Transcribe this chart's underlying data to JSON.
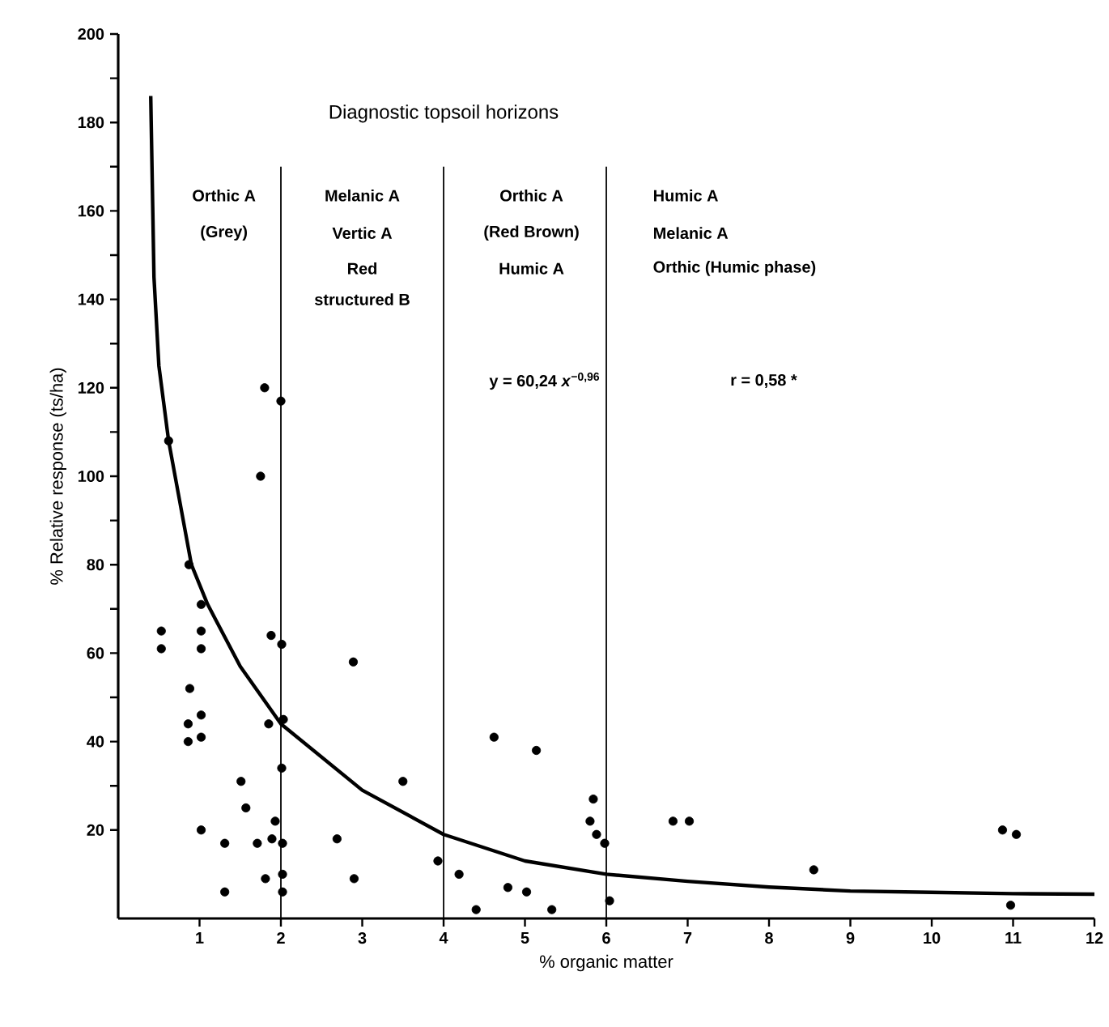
{
  "chart_data": {
    "type": "scatter",
    "xlabel": "% organic matter",
    "ylabel": "% Relative response  (ts/ha)",
    "xlim": [
      0,
      12
    ],
    "xticks": [
      1,
      2,
      3,
      4,
      5,
      6,
      7,
      8,
      9,
      10,
      11,
      12
    ],
    "ylim": [
      0,
      200
    ],
    "yticks": [
      20,
      40,
      60,
      80,
      100,
      120,
      140,
      160,
      180,
      200
    ],
    "series": [
      {
        "marker": "circle",
        "color": "#000000",
        "x": [
          1.8,
          2.0,
          0.62,
          1.75,
          0.87,
          1.02,
          0.53,
          1.02,
          0.53,
          1.02,
          1.88,
          2.01,
          2.89,
          0.88,
          1.02,
          0.86,
          1.02,
          0.86,
          1.85,
          2.03,
          2.01,
          1.51,
          3.5,
          1.57,
          1.02,
          1.93,
          1.89,
          1.31,
          1.71,
          2.02,
          2.69,
          1.81,
          2.02,
          2.9,
          1.31,
          2.02,
          4.62,
          5.14,
          5.84,
          5.8,
          5.88,
          5.98,
          3.93,
          4.19,
          4.79,
          5.02,
          4.4,
          5.33,
          6.04,
          6.82,
          7.02,
          8.55,
          10.87,
          11.04,
          10.97
        ],
        "values": [
          120,
          117,
          108,
          100,
          80,
          71,
          65,
          65,
          61,
          61,
          64,
          62,
          58,
          52,
          46,
          44,
          41,
          40,
          44,
          45,
          34,
          31,
          31,
          25,
          20,
          22,
          18,
          17,
          17,
          17,
          18,
          9,
          10,
          9,
          6,
          6,
          41,
          38,
          27,
          22,
          19,
          17,
          13,
          10,
          7,
          6,
          2,
          2,
          4,
          22,
          22,
          11,
          20,
          19,
          3
        ]
      },
      {
        "type": "line",
        "marker": "none",
        "line_style": "solid",
        "color": "#000000",
        "x": [
          0.4,
          0.44,
          0.5,
          0.62,
          0.8,
          0.9,
          1.1,
          1.5,
          2,
          3,
          4,
          5,
          6,
          7,
          8,
          9,
          10,
          11,
          12
        ],
        "values": [
          186,
          145,
          125,
          108,
          90,
          80,
          71,
          57,
          44,
          29,
          19,
          13,
          10,
          8.4,
          7.1,
          6.2,
          5.9,
          5.6,
          5.5
        ]
      }
    ],
    "ref_lines": [
      {
        "axis": "x",
        "value": 2,
        "color": "#000000"
      },
      {
        "axis": "x",
        "value": 4,
        "color": "#000000"
      },
      {
        "axis": "x",
        "value": 6,
        "color": "#000000"
      }
    ],
    "annotations": [
      "Diagnostic topsoil horizons",
      "Orthic A",
      "(Grey)",
      "Melanic A",
      "Vertic A",
      "Red",
      "structured B",
      "Orthic A",
      "(Red Brown)",
      "Humic A",
      "Humic A",
      "Melanic A",
      "Orthic (Humic phase)",
      "y = 60,24 *x*$^{−0,96}$",
      "r = 0,58 *"
    ]
  }
}
